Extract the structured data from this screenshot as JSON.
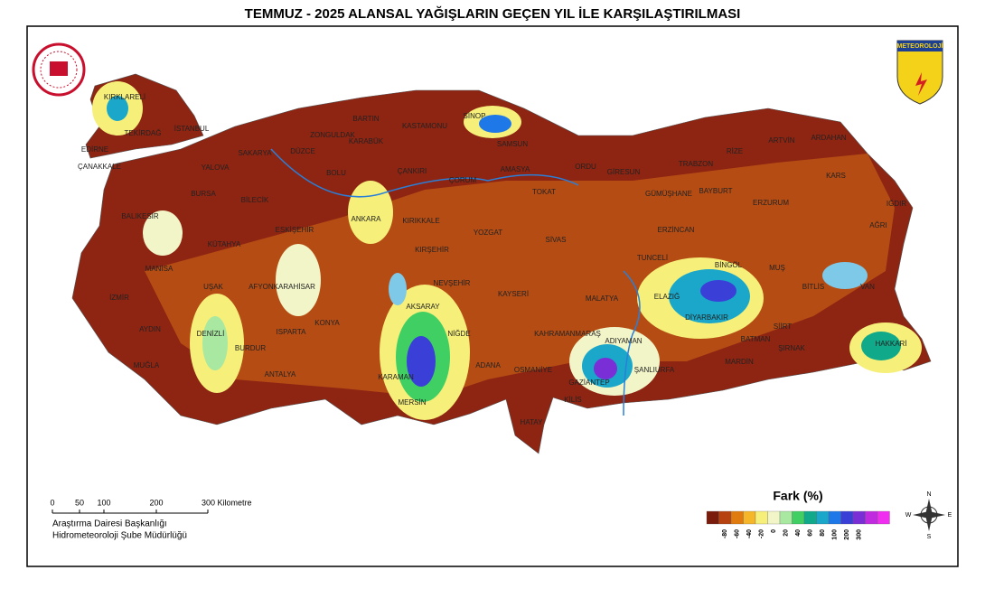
{
  "title": "TEMMUZ - 2025 ALANSAL YAĞIŞLARIN GEÇEN YIL İLE KARŞILAŞTIRILMASI",
  "logo_text": "METEOROLOJİ",
  "cities": [
    "KIRKLARELİ",
    "TEKİRDAĞ",
    "İSTANBUL",
    "EDİRNE",
    "ÇANAKKALE",
    "YALOVA",
    "SAKARYA",
    "DÜZCE",
    "ZONGULDAK",
    "BARTIN",
    "KARABÜK",
    "BOLU",
    "KASTAMONU",
    "SİNOP",
    "SAMSUN",
    "ÇANKIRI",
    "ÇORUM",
    "AMASYA",
    "TOKAT",
    "ORDU",
    "GİRESUN",
    "TRABZON",
    "RİZE",
    "ARTVİN",
    "ARDAHAN",
    "KARS",
    "IĞDIR",
    "AĞRI",
    "GÜMÜŞHANE",
    "BAYBURT",
    "ERZURUM",
    "ERZİNCAN",
    "BURSA",
    "BİLECİK",
    "BALIKESİR",
    "KÜTAHYA",
    "ESKİŞEHİR",
    "ANKARA",
    "KIRIKKALE",
    "YOZGAT",
    "SİVAS",
    "MANİSA",
    "UŞAK",
    "AFYONKARAHİSAR",
    "İZMİR",
    "AYDIN",
    "DENİZLİ",
    "MUĞLA",
    "BURDUR",
    "ISPARTA",
    "ANTALYA",
    "KONYA",
    "KIRŞEHİR",
    "NEVŞEHİR",
    "AKSARAY",
    "KAYSERİ",
    "NİĞDE",
    "KARAMAN",
    "MERSİN",
    "ADANA",
    "OSMANİYE",
    "HATAY",
    "KAHRAMANMARAŞ",
    "GAZİANTEP",
    "KİLİS",
    "ADIYAMAN",
    "ŞANLIURFA",
    "MALATYA",
    "TUNCELİ",
    "ELAZIĞ",
    "BİNGÖL",
    "MUŞ",
    "BİTLİS",
    "VAN",
    "DİYARBAKIR",
    "BATMAN",
    "SİİRT",
    "ŞIRNAK",
    "MARDİN",
    "HAKKARİ"
  ],
  "scale": {
    "ticks": [
      "0",
      "50",
      "100",
      "200"
    ],
    "unit_label": "300 Kilometre"
  },
  "credits": [
    "Araştırma Dairesi Başkanlığı",
    "Hidrometeoroloji Şube Müdürlüğü"
  ],
  "legend": {
    "title": "Fark (%)",
    "colors": [
      "#7a1c0c",
      "#b5420f",
      "#e07b10",
      "#f5b62a",
      "#f6f07a",
      "#f2f5c8",
      "#a8e8a0",
      "#3fcf63",
      "#10a98a",
      "#1aa7c9",
      "#1f78e8",
      "#3a3fd8",
      "#7a2fd6",
      "#c12be0",
      "#f02ef0"
    ],
    "labels": [
      -80,
      -60,
      -40,
      -20,
      0,
      20,
      40,
      60,
      80,
      100,
      200,
      300
    ]
  },
  "compass": {
    "n": "N",
    "s": "S",
    "e": "E",
    "w": "W"
  }
}
